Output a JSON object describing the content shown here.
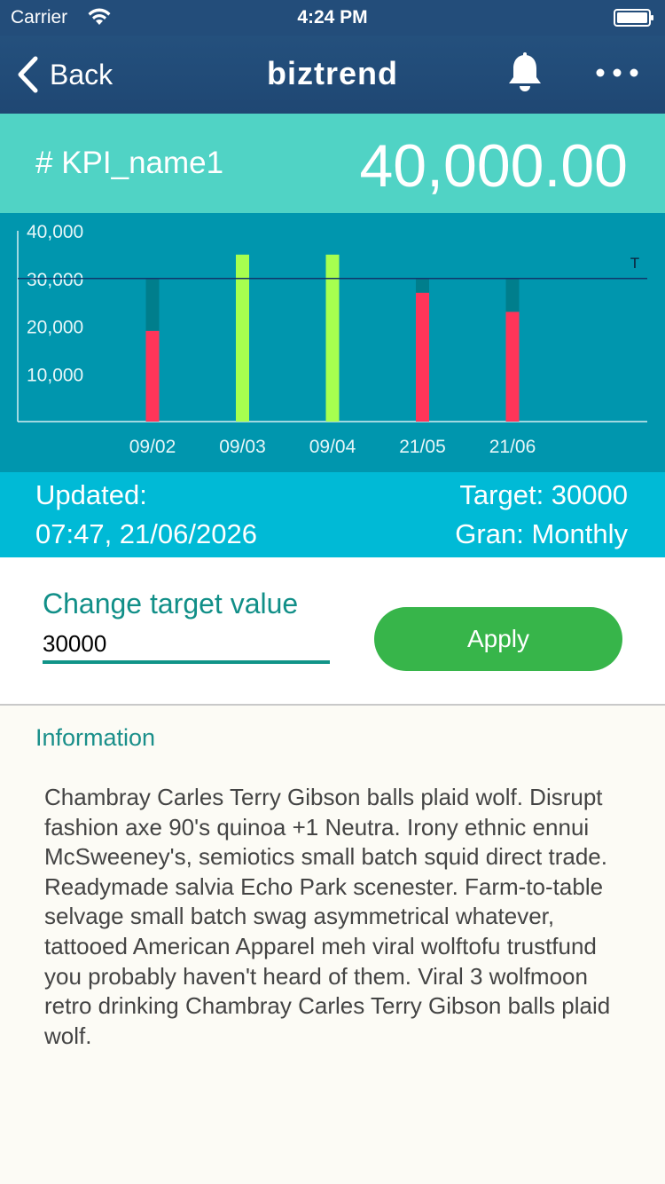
{
  "statusbar": {
    "carrier": "Carrier",
    "time": "4:24 PM"
  },
  "navbar": {
    "back_label": "Back",
    "title": "biztrend"
  },
  "kpi": {
    "name": "# KPI_name1",
    "value": "40,000.00"
  },
  "chart_data": {
    "type": "bar",
    "categories": [
      "09/02",
      "09/03",
      "09/04",
      "21/05",
      "21/06"
    ],
    "values": [
      19000,
      35000,
      35000,
      27000,
      23000
    ],
    "target": 30000,
    "target_label": "T",
    "ylim": [
      0,
      40000
    ],
    "yticks": [
      "10,000",
      "20,000",
      "30,000",
      "40,000"
    ],
    "ytick_values": [
      10000,
      20000,
      30000,
      40000
    ],
    "colors": {
      "below_target": "#ff3559",
      "above_target": "#a7ff4f",
      "shortfall": "#007e8c",
      "target_line": "#11366b",
      "background": "#0096ae"
    }
  },
  "updated": {
    "label": "Updated:",
    "datetime": "07:47, 21/06/2026",
    "target": "Target: 30000",
    "granularity": "Gran: Monthly"
  },
  "target_form": {
    "label": "Change target value",
    "value": "30000",
    "apply_label": "Apply"
  },
  "information": {
    "title": "Information",
    "body": "Chambray Carles Terry Gibson balls plaid wolf. Disrupt fashion axe 90's quinoa +1 Neutra. Irony ethnic ennui McSweeney's, semiotics small batch squid direct trade. Readymade salvia Echo Park scenester. Farm-to-table selvage small batch swag asymmetrical whatever, tattooed American Apparel meh viral wolftofu trustfund you probably haven't heard of them. Viral 3 wolfmoon retro drinking Chambray Carles Terry Gibson balls plaid wolf."
  },
  "icons": {
    "wifi": "wifi-icon",
    "battery": "battery-icon",
    "back": "chevron-left-icon",
    "bell": "bell-icon",
    "more": "more-horizontal-icon"
  }
}
